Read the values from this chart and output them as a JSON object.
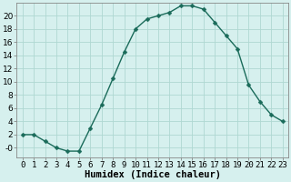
{
  "x": [
    0,
    1,
    2,
    3,
    4,
    5,
    6,
    7,
    8,
    9,
    10,
    11,
    12,
    13,
    14,
    15,
    16,
    17,
    18,
    19,
    20,
    21,
    22,
    23
  ],
  "y": [
    2,
    2,
    1,
    0,
    -0.5,
    -0.5,
    3,
    6.5,
    10.5,
    14.5,
    18,
    19.5,
    20,
    20.5,
    21.5,
    21.5,
    21,
    19,
    17,
    15,
    9.5,
    7,
    5,
    4
  ],
  "line_color": "#1a6b5a",
  "marker_color": "#1a6b5a",
  "bg_color": "#d6f0ee",
  "grid_color": "#afd8d2",
  "xlabel": "Humidex (Indice chaleur)",
  "xlim": [
    -0.5,
    23.5
  ],
  "ylim": [
    -1.5,
    22
  ],
  "yticks": [
    0,
    2,
    4,
    6,
    8,
    10,
    12,
    14,
    16,
    18,
    20
  ],
  "ytick_labels": [
    "-0",
    "2",
    "4",
    "6",
    "8",
    "10",
    "12",
    "14",
    "16",
    "18",
    "20"
  ],
  "xticks": [
    0,
    1,
    2,
    3,
    4,
    5,
    6,
    7,
    8,
    9,
    10,
    11,
    12,
    13,
    14,
    15,
    16,
    17,
    18,
    19,
    20,
    21,
    22,
    23
  ],
  "marker_size": 2.5,
  "line_width": 1.0,
  "font_size": 6.5,
  "xlabel_fontsize": 7.5
}
